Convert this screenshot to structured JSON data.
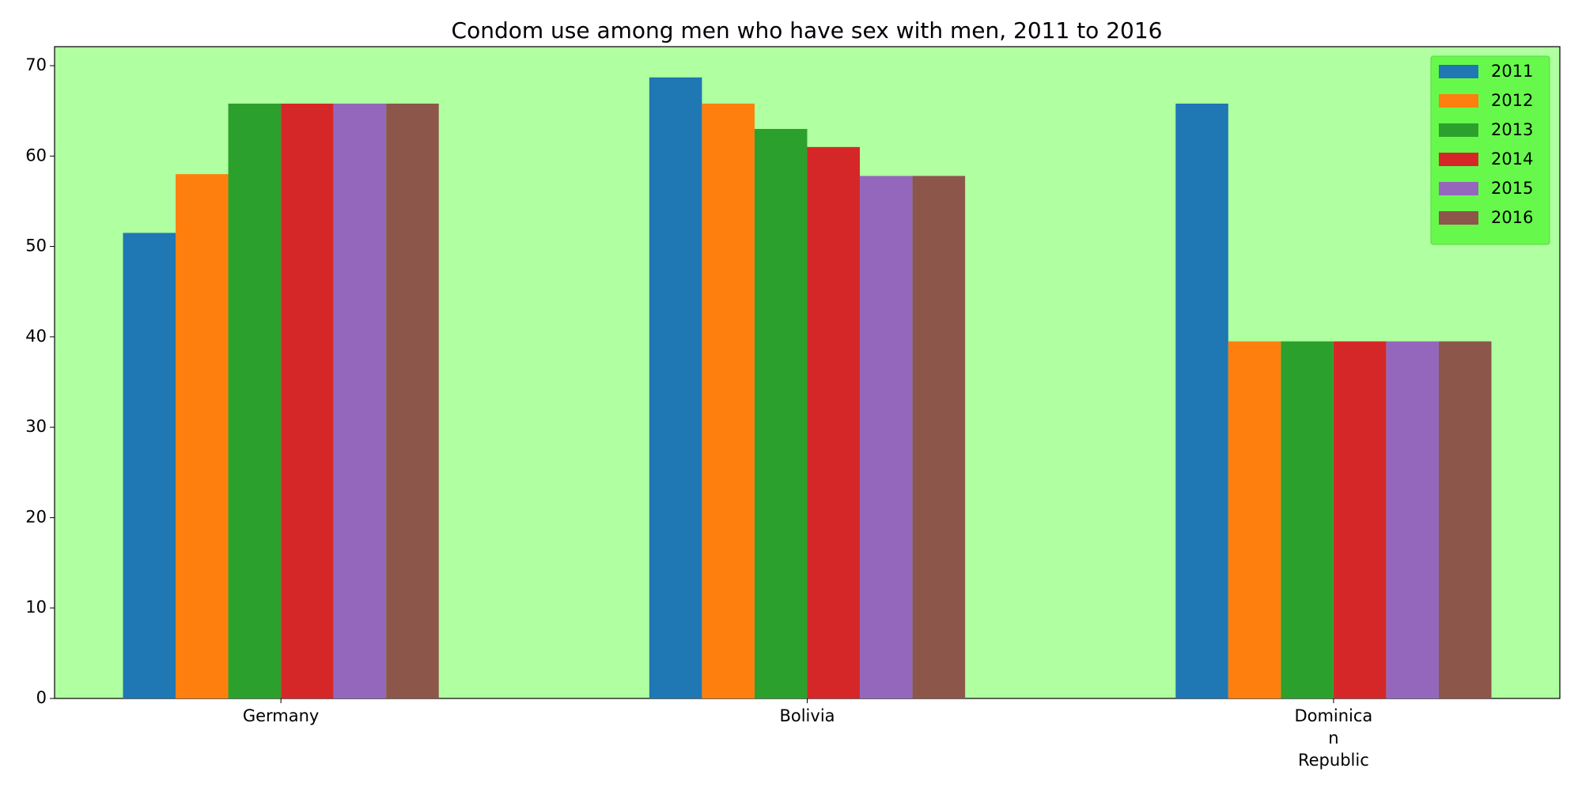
{
  "chart_data": {
    "type": "bar",
    "title": "Condom use among men who have sex with men, 2011 to 2016",
    "categories": [
      "Germany",
      "Bolivia",
      "Dominica\nn\nRepublic"
    ],
    "series": [
      {
        "name": "2011",
        "color": "#1f77b4",
        "values": [
          51.5,
          68.7,
          65.8
        ]
      },
      {
        "name": "2012",
        "color": "#ff7f0e",
        "values": [
          58.0,
          65.8,
          39.5
        ]
      },
      {
        "name": "2013",
        "color": "#2ca02c",
        "values": [
          65.8,
          63.0,
          39.5
        ]
      },
      {
        "name": "2014",
        "color": "#d62728",
        "values": [
          65.8,
          61.0,
          39.5
        ]
      },
      {
        "name": "2015",
        "color": "#9467bd",
        "values": [
          65.8,
          57.8,
          39.5
        ]
      },
      {
        "name": "2016",
        "color": "#8c564b",
        "values": [
          65.8,
          57.8,
          39.5
        ]
      }
    ],
    "ylim": [
      0,
      72.1
    ],
    "yticks": [
      0,
      10,
      20,
      30,
      40,
      50,
      60,
      70
    ],
    "grid": false,
    "legend": "upper right"
  }
}
